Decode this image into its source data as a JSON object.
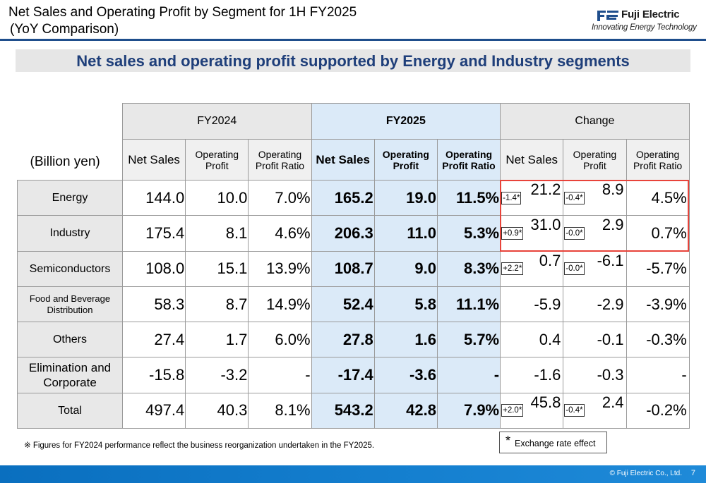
{
  "header": {
    "title_line1": "Net Sales and Operating Profit by Segment for 1H FY2025",
    "title_line2": "(YoY Comparison)",
    "logo_name": "Fuji Electric",
    "logo_tagline": "Innovating Energy Technology",
    "accent_color": "#1f4e8c"
  },
  "subtitle": "Net sales and operating profit supported by Energy and Industry segments",
  "table": {
    "unit_label": "(Billion yen)",
    "groups": [
      "FY2024",
      "FY2025",
      "Change"
    ],
    "sub_headers": {
      "net_sales": "Net Sales",
      "op_profit": "Operating Profit",
      "op_ratio": "Operating Profit Ratio"
    },
    "rows": [
      {
        "segment": "Energy",
        "fy24": [
          "144.0",
          "10.0",
          "7.0%"
        ],
        "fy25": [
          "165.2",
          "19.0",
          "11.5%"
        ],
        "chg": [
          "21.2",
          "8.9",
          "4.5%"
        ],
        "fx": [
          "-1.4*",
          "-0.4*"
        ]
      },
      {
        "segment": "Industry",
        "fy24": [
          "175.4",
          "8.1",
          "4.6%"
        ],
        "fy25": [
          "206.3",
          "11.0",
          "5.3%"
        ],
        "chg": [
          "31.0",
          "2.9",
          "0.7%"
        ],
        "fx": [
          "+0.9*",
          "-0.0*"
        ]
      },
      {
        "segment": "Semiconductors",
        "fy24": [
          "108.0",
          "15.1",
          "13.9%"
        ],
        "fy25": [
          "108.7",
          "9.0",
          "8.3%"
        ],
        "chg": [
          "0.7",
          "-6.1",
          "-5.7%"
        ],
        "fx": [
          "+2.2*",
          "-0.0*"
        ]
      },
      {
        "segment": "Food and Beverage Distribution",
        "fy24": [
          "58.3",
          "8.7",
          "14.9%"
        ],
        "fy25": [
          "52.4",
          "5.8",
          "11.1%"
        ],
        "chg": [
          "-5.9",
          "-2.9",
          "-3.9%"
        ],
        "fx": [
          "",
          ""
        ]
      },
      {
        "segment": "Others",
        "fy24": [
          "27.4",
          "1.7",
          "6.0%"
        ],
        "fy25": [
          "27.8",
          "1.6",
          "5.7%"
        ],
        "chg": [
          "0.4",
          "-0.1",
          "-0.3%"
        ],
        "fx": [
          "",
          ""
        ]
      },
      {
        "segment": "Elimination and Corporate",
        "fy24": [
          "-15.8",
          "-3.2",
          "-"
        ],
        "fy25": [
          "-17.4",
          "-3.6",
          "-"
        ],
        "chg": [
          "-1.6",
          "-0.3",
          "-"
        ],
        "fx": [
          "",
          ""
        ]
      },
      {
        "segment": "Total",
        "fy24": [
          "497.4",
          "40.3",
          "8.1%"
        ],
        "fy25": [
          "543.2",
          "42.8",
          "7.9%"
        ],
        "chg": [
          "45.8",
          "2.4",
          "-0.2%"
        ],
        "fx": [
          "+2.0*",
          "-0.4*"
        ]
      }
    ]
  },
  "footnote": "※ Figures for FY2024 performance reflect the business reorganization undertaken in the FY2025.",
  "legend": {
    "star": "*",
    "text": "Exchange rate effect"
  },
  "footer": {
    "copyright": "© Fuji Electric Co., Ltd.",
    "page_number": "7"
  },
  "colors": {
    "fy2025_fill": "#dbeaf8",
    "label_fill": "#e8e8e8",
    "highlight_border": "#e8433a",
    "subtitle_text": "#1f3f7a"
  }
}
